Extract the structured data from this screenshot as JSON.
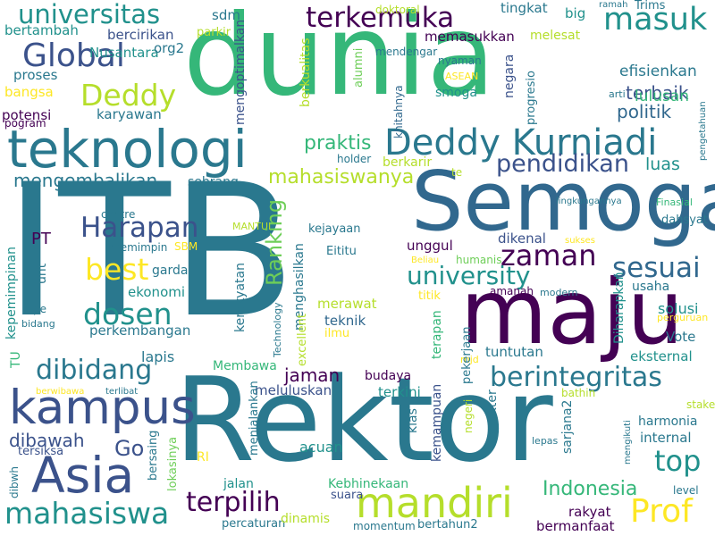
{
  "palette": {
    "background": "#ffffff",
    "dark_purple": "#440154",
    "indigo": "#3b528b",
    "navy": "#31688e",
    "teal_blue": "#2a788e",
    "teal": "#21918c",
    "green_teal": "#1f9e89",
    "green": "#35b779",
    "light_green": "#6ece58",
    "lime": "#b5de2b",
    "yellow": "#fde725"
  },
  "words": [
    {
      "text": "ITB",
      "color": "#2a788e"
    },
    {
      "text": "Rektor",
      "color": "#2a788e"
    },
    {
      "text": "dunia",
      "color": "#35b779"
    },
    {
      "text": "Semoga",
      "color": "#31688e"
    },
    {
      "text": "maju",
      "color": "#440154"
    },
    {
      "text": "teknologi",
      "color": "#2a788e"
    },
    {
      "text": "Deddy Kurniadi",
      "color": "#2a788e"
    },
    {
      "text": "kampus",
      "color": "#3b528b"
    },
    {
      "text": "mandiri",
      "color": "#b5de2b"
    },
    {
      "text": "Asia",
      "color": "#3b528b"
    },
    {
      "text": "mahasiswa",
      "color": "#21918c"
    },
    {
      "text": "berintegritas",
      "color": "#2a788e"
    },
    {
      "text": "universitas",
      "color": "#21918c"
    },
    {
      "text": "terkemuka",
      "color": "#440154"
    },
    {
      "text": "masuk",
      "color": "#21918c"
    },
    {
      "text": "Global",
      "color": "#3b528b"
    },
    {
      "text": "Deddy",
      "color": "#b5de2b"
    },
    {
      "text": "pendidikan",
      "color": "#3b528b"
    },
    {
      "text": "zaman",
      "color": "#440154"
    },
    {
      "text": "university",
      "color": "#21918c"
    },
    {
      "text": "sesuai",
      "color": "#31688e"
    },
    {
      "text": "Harapan",
      "color": "#3b528b"
    },
    {
      "text": "best",
      "color": "#fde725"
    },
    {
      "text": "dosen",
      "color": "#21918c"
    },
    {
      "text": "Ranking",
      "color": "#6ece58"
    },
    {
      "text": "dibidang",
      "color": "#2a788e"
    },
    {
      "text": "terpilih",
      "color": "#440154"
    },
    {
      "text": "Prof",
      "color": "#fde725"
    },
    {
      "text": "top",
      "color": "#21918c"
    },
    {
      "text": "praktis",
      "color": "#35b779"
    },
    {
      "text": "mengembalikan",
      "color": "#2a788e"
    },
    {
      "text": "mahasiswanya",
      "color": "#b5de2b"
    },
    {
      "text": "Indonesia",
      "color": "#35b779"
    },
    {
      "text": "dibawah",
      "color": "#3b528b"
    },
    {
      "text": "Go",
      "color": "#3b528b"
    },
    {
      "text": "jaman",
      "color": "#440154"
    },
    {
      "text": "terbaik",
      "color": "#3b528b"
    },
    {
      "text": "politik",
      "color": "#31688e"
    },
    {
      "text": "lulusan",
      "color": "#35b779"
    },
    {
      "text": "luas",
      "color": "#21918c"
    },
    {
      "text": "efisienkan",
      "color": "#2a788e"
    },
    {
      "text": "memasukkan",
      "color": "#440154"
    },
    {
      "text": "bertambah",
      "color": "#21918c"
    },
    {
      "text": "bercirikan",
      "color": "#3b528b"
    },
    {
      "text": "Nusantara",
      "color": "#21918c"
    },
    {
      "text": "proses",
      "color": "#2a788e"
    },
    {
      "text": "bangsa",
      "color": "#fde725"
    },
    {
      "text": "potensi",
      "color": "#440154"
    },
    {
      "text": "karyawan",
      "color": "#2a788e"
    },
    {
      "text": "pogram",
      "color": "#440154"
    },
    {
      "text": "sdm",
      "color": "#2a788e"
    },
    {
      "text": "org2",
      "color": "#2a788e"
    },
    {
      "text": "parkir",
      "color": "#b5de2b"
    },
    {
      "text": "mengoptimalkan",
      "color": "#3b528b"
    },
    {
      "text": "berkualitas",
      "color": "#b5de2b"
    },
    {
      "text": "alumni",
      "color": "#6ece58"
    },
    {
      "text": "mendengar",
      "color": "#2a788e"
    },
    {
      "text": "doktoral",
      "color": "#b5de2b"
    },
    {
      "text": "tingkat",
      "color": "#2a788e"
    },
    {
      "text": "big",
      "color": "#21918c"
    },
    {
      "text": "ramah",
      "color": "#2a788e"
    },
    {
      "text": "Trims",
      "color": "#2a788e"
    },
    {
      "text": "melesat",
      "color": "#b5de2b"
    },
    {
      "text": "nyaman",
      "color": "#2a788e"
    },
    {
      "text": "ASEAN",
      "color": "#fde725"
    },
    {
      "text": "khitahnya",
      "color": "#31688e"
    },
    {
      "text": "smoga",
      "color": "#21918c"
    },
    {
      "text": "negara",
      "color": "#3b528b"
    },
    {
      "text": "progresio",
      "color": "#2a788e"
    },
    {
      "text": "arti",
      "color": "#2a788e"
    },
    {
      "text": "pengetahuan",
      "color": "#2a788e"
    },
    {
      "text": "holder",
      "color": "#2a788e"
    },
    {
      "text": "berkarir",
      "color": "#b5de2b"
    },
    {
      "text": "te",
      "color": "#b5de2b"
    },
    {
      "text": "sebrang",
      "color": "#2a788e"
    },
    {
      "text": "lingkungannya",
      "color": "#2a788e"
    },
    {
      "text": "Finasial",
      "color": "#35b779"
    },
    {
      "text": "kepemimpinan",
      "color": "#21918c"
    },
    {
      "text": "centre",
      "color": "#2a788e"
    },
    {
      "text": "PT",
      "color": "#440154"
    },
    {
      "text": "memimpin",
      "color": "#2a788e"
    },
    {
      "text": "SBM",
      "color": "#fde725"
    },
    {
      "text": "MANTUL",
      "color": "#b5de2b"
    },
    {
      "text": "kejayaan",
      "color": "#2a788e"
    },
    {
      "text": "Eititu",
      "color": "#2a788e"
    },
    {
      "text": "unggul",
      "color": "#440154"
    },
    {
      "text": "Beliau",
      "color": "#fde725"
    },
    {
      "text": "humanis",
      "color": "#6ece58"
    },
    {
      "text": "dikenal",
      "color": "#3b528b"
    },
    {
      "text": "sukses",
      "color": "#fde725"
    },
    {
      "text": "dahsyat",
      "color": "#2a788e"
    },
    {
      "text": "unt",
      "color": "#2a788e"
    },
    {
      "text": "garda",
      "color": "#2a788e"
    },
    {
      "text": "ekonomi",
      "color": "#21918c"
    },
    {
      "text": "menghasilkan",
      "color": "#2a788e"
    },
    {
      "text": "kerakyatan",
      "color": "#2a788e"
    },
    {
      "text": "Technology",
      "color": "#2a788e"
    },
    {
      "text": "titik",
      "color": "#fde725"
    },
    {
      "text": "amanah",
      "color": "#440154"
    },
    {
      "text": "modern",
      "color": "#2a788e"
    },
    {
      "text": "Diharapkan",
      "color": "#21918c"
    },
    {
      "text": "usaha",
      "color": "#2a788e"
    },
    {
      "text": "solusi",
      "color": "#21918c"
    },
    {
      "text": "perguruan",
      "color": "#fde725"
    },
    {
      "text": "pe",
      "color": "#2a788e"
    },
    {
      "text": "bidang",
      "color": "#2a788e"
    },
    {
      "text": "perkembangan",
      "color": "#2a788e"
    },
    {
      "text": "merawat",
      "color": "#b5de2b"
    },
    {
      "text": "teknik",
      "color": "#31688e"
    },
    {
      "text": "ilmu",
      "color": "#fde725"
    },
    {
      "text": "excellent",
      "color": "#b5de2b"
    },
    {
      "text": "terapan",
      "color": "#35b779"
    },
    {
      "text": "mjd",
      "color": "#fde725"
    },
    {
      "text": "tuntutan",
      "color": "#2a788e"
    },
    {
      "text": "Vote",
      "color": "#2a788e"
    },
    {
      "text": "eksternal",
      "color": "#21918c"
    },
    {
      "text": "lapis",
      "color": "#2a788e"
    },
    {
      "text": "Membawa",
      "color": "#35b779"
    },
    {
      "text": "pekerjaan",
      "color": "#2a788e"
    },
    {
      "text": "TU",
      "color": "#35b779"
    },
    {
      "text": "berwibawa",
      "color": "#fde725"
    },
    {
      "text": "terlibat",
      "color": "#2a788e"
    },
    {
      "text": "meluluskan",
      "color": "#3b528b"
    },
    {
      "text": "budaya",
      "color": "#440154"
    },
    {
      "text": "terkini",
      "color": "#21918c"
    },
    {
      "text": "bathin",
      "color": "#b5de2b"
    },
    {
      "text": "stake",
      "color": "#b5de2b"
    },
    {
      "text": "harmonia",
      "color": "#2a788e"
    },
    {
      "text": "internal",
      "color": "#2a788e"
    },
    {
      "text": "tersiksa",
      "color": "#3b528b"
    },
    {
      "text": "bersaing",
      "color": "#2a788e"
    },
    {
      "text": "lokasinya",
      "color": "#6ece58"
    },
    {
      "text": "RI",
      "color": "#fde725"
    },
    {
      "text": "menjalankan",
      "color": "#2a788e"
    },
    {
      "text": "acuan",
      "color": "#21918c"
    },
    {
      "text": "klas",
      "color": "#2a788e"
    },
    {
      "text": "kemampuan",
      "color": "#3b528b"
    },
    {
      "text": "negeri",
      "color": "#b5de2b"
    },
    {
      "text": "karakter",
      "color": "#2a788e"
    },
    {
      "text": "lepas",
      "color": "#2a788e"
    },
    {
      "text": "sarjana2",
      "color": "#2a788e"
    },
    {
      "text": "mengikuti",
      "color": "#2a788e"
    },
    {
      "text": "level",
      "color": "#2a788e"
    },
    {
      "text": "dibwh",
      "color": "#2a788e"
    },
    {
      "text": "jalan",
      "color": "#21918c"
    },
    {
      "text": "Kebhinekaan",
      "color": "#35b779"
    },
    {
      "text": "suara",
      "color": "#3b528b"
    },
    {
      "text": "percaturan",
      "color": "#2a788e"
    },
    {
      "text": "dinamis",
      "color": "#b5de2b"
    },
    {
      "text": "momentum",
      "color": "#2a788e"
    },
    {
      "text": "bertahun2",
      "color": "#2a788e"
    },
    {
      "text": "rakyat",
      "color": "#440154"
    },
    {
      "text": "bermanfaat",
      "color": "#440154"
    }
  ]
}
